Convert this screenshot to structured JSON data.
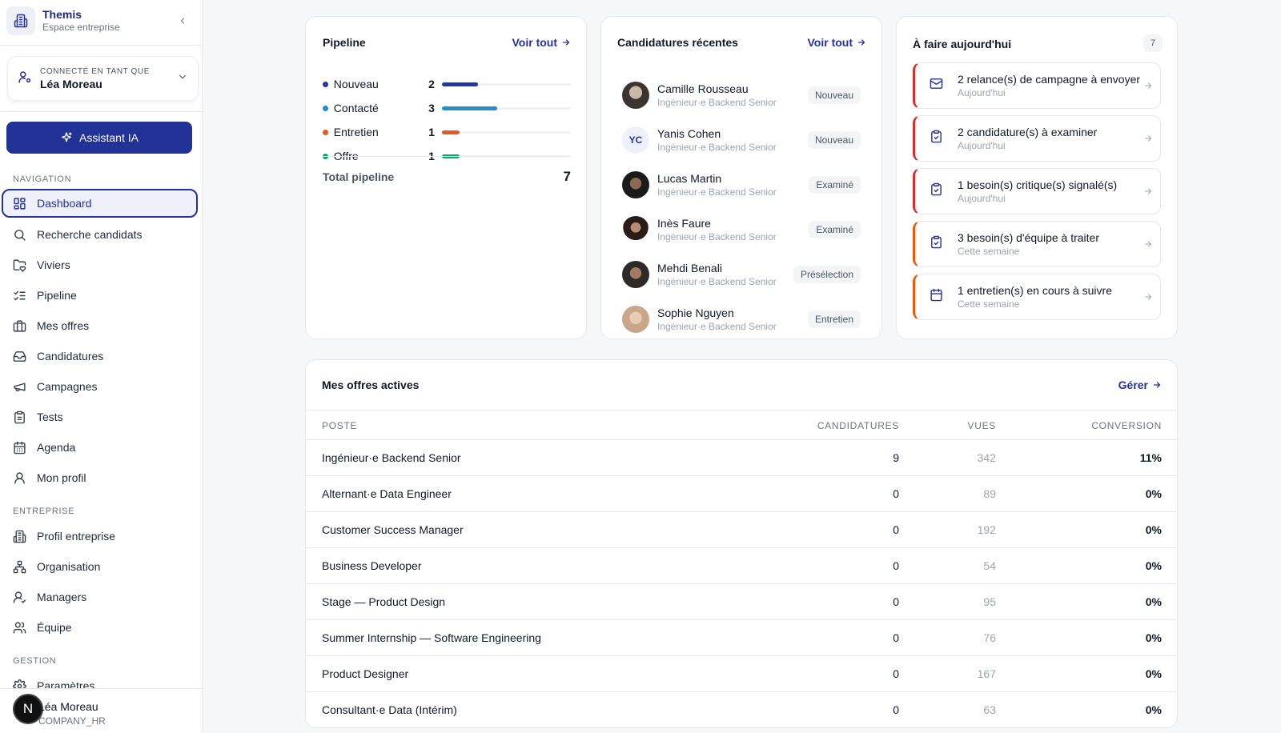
{
  "brand": {
    "name": "Themis",
    "subtitle": "Espace entreprise"
  },
  "user_card": {
    "label": "CONNECTÉ EN TANT QUE",
    "name": "Léa Moreau"
  },
  "assistant_button": "Assistant IA",
  "nav": {
    "section_navigation": "NAVIGATION",
    "section_entreprise": "ENTREPRISE",
    "section_gestion": "GESTION",
    "items": [
      {
        "label": "Dashboard",
        "icon": "dashboard-icon",
        "active": true
      },
      {
        "label": "Recherche candidats",
        "icon": "search-icon"
      },
      {
        "label": "Viviers",
        "icon": "folder-heart-icon"
      },
      {
        "label": "Pipeline",
        "icon": "list-checks-icon"
      },
      {
        "label": "Mes offres",
        "icon": "briefcase-icon"
      },
      {
        "label": "Candidatures",
        "icon": "inbox-icon"
      },
      {
        "label": "Campagnes",
        "icon": "megaphone-icon"
      },
      {
        "label": "Tests",
        "icon": "clipboard-icon"
      },
      {
        "label": "Agenda",
        "icon": "calendar-icon"
      },
      {
        "label": "Mon profil",
        "icon": "user-icon"
      }
    ],
    "entreprise_items": [
      {
        "label": "Profil entreprise",
        "icon": "building-icon"
      },
      {
        "label": "Organisation",
        "icon": "org-chart-icon"
      },
      {
        "label": "Managers",
        "icon": "user-check-icon"
      },
      {
        "label": "Équipe",
        "icon": "users-icon"
      }
    ],
    "gestion_items": [
      {
        "label": "Paramètres",
        "icon": "settings-icon"
      }
    ]
  },
  "footer_user": {
    "initial": "N",
    "name": "Léa Moreau",
    "role": "COMPANY_HR"
  },
  "pipeline": {
    "title": "Pipeline",
    "link": "Voir tout",
    "stages": [
      {
        "label": "Nouveau",
        "count": "2",
        "color": "#2535a3",
        "fraction": 0.28
      },
      {
        "label": "Contacté",
        "count": "3",
        "color": "#1f8fd0",
        "fraction": 0.43
      },
      {
        "label": "Entretien",
        "count": "1",
        "color": "#e65a1e",
        "fraction": 0.14
      },
      {
        "label": "Offre",
        "count": "1",
        "color": "#16a06b",
        "fraction": 0.14
      }
    ],
    "total_label": "Total pipeline",
    "total_value": "7"
  },
  "recent": {
    "title": "Candidatures récentes",
    "link": "Voir tout",
    "items": [
      {
        "name": "Camille Rousseau",
        "role": "Ingénieur·e Backend Senior",
        "status": "Nouveau",
        "avatar": "photo"
      },
      {
        "name": "Yanis Cohen",
        "role": "Ingénieur·e Backend Senior",
        "status": "Nouveau",
        "avatar": "YC"
      },
      {
        "name": "Lucas Martin",
        "role": "Ingénieur·e Backend Senior",
        "status": "Examiné",
        "avatar": "photo"
      },
      {
        "name": "Inès Faure",
        "role": "Ingénieur·e Backend Senior",
        "status": "Examiné",
        "avatar": "photo"
      },
      {
        "name": "Mehdi Benali",
        "role": "Ingénieur·e Backend Senior",
        "status": "Présélection",
        "avatar": "photo"
      },
      {
        "name": "Sophie Nguyen",
        "role": "Ingénieur·e Backend Senior",
        "status": "Entretien",
        "avatar": "photo"
      }
    ]
  },
  "todo": {
    "title": "À faire aujourd'hui",
    "count": "7",
    "items": [
      {
        "title": "2 relance(s) de campagne à envoyer",
        "sub": "Aujourd'hui",
        "icon": "mail-icon",
        "urgency": "red"
      },
      {
        "title": "2 candidature(s) à examiner",
        "sub": "Aujourd'hui",
        "icon": "clipboard-check-icon",
        "urgency": "red"
      },
      {
        "title": "1 besoin(s) critique(s) signalé(s)",
        "sub": "Aujourd'hui",
        "icon": "clipboard-check-icon",
        "urgency": "red"
      },
      {
        "title": "3 besoin(s) d'équipe à traiter",
        "sub": "Cette semaine",
        "icon": "clipboard-check-icon",
        "urgency": "orange"
      },
      {
        "title": "1 entretien(s) en cours à suivre",
        "sub": "Cette semaine",
        "icon": "calendar-icon",
        "urgency": "orange"
      }
    ]
  },
  "offers": {
    "title": "Mes offres actives",
    "link": "Gérer",
    "columns": {
      "poste": "POSTE",
      "candidatures": "CANDIDATURES",
      "vues": "VUES",
      "conversion": "CONVERSION"
    },
    "rows": [
      {
        "title": "Ingénieur·e Backend Senior",
        "applications": "9",
        "views": "342",
        "conversion": "11%"
      },
      {
        "title": "Alternant·e Data Engineer",
        "applications": "0",
        "views": "89",
        "conversion": "0%"
      },
      {
        "title": "Customer Success Manager",
        "applications": "0",
        "views": "192",
        "conversion": "0%"
      },
      {
        "title": "Business Developer",
        "applications": "0",
        "views": "54",
        "conversion": "0%"
      },
      {
        "title": "Stage — Product Design",
        "applications": "0",
        "views": "95",
        "conversion": "0%"
      },
      {
        "title": "Summer Internship — Software Engineering",
        "applications": "0",
        "views": "76",
        "conversion": "0%"
      },
      {
        "title": "Product Designer",
        "applications": "0",
        "views": "167",
        "conversion": "0%"
      },
      {
        "title": "Consultant·e Data (Intérim)",
        "applications": "0",
        "views": "63",
        "conversion": "0%"
      }
    ]
  },
  "colors": {
    "accent": "#233296",
    "urgent": "#d32f2f",
    "warning": "#ea580c"
  }
}
